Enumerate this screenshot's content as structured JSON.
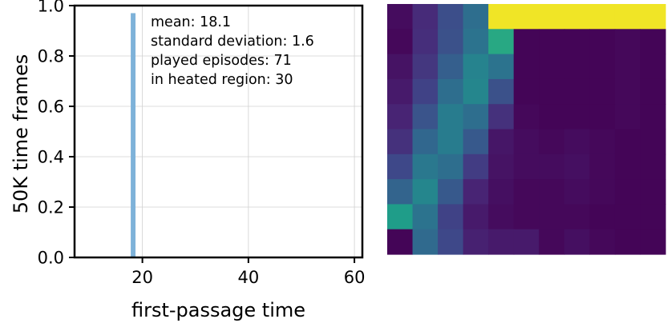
{
  "chart_data": [
    {
      "type": "bar",
      "xlabel": "first-passage time",
      "ylabel": "50K time frames",
      "xlim": [
        7.2,
        61.5
      ],
      "ylim": [
        0,
        1.0
      ],
      "xticks": [
        20,
        40,
        60
      ],
      "yticks": [
        0.0,
        0.2,
        0.4,
        0.6,
        0.8,
        1.0
      ],
      "xtick_labels": [
        "20",
        "40",
        "60"
      ],
      "ytick_labels": [
        "0.0",
        "0.2",
        "0.4",
        "0.6",
        "0.8",
        "1.0"
      ],
      "grid": true,
      "bar_color": "#7eb2d9",
      "bars": [
        {
          "x_start": 17.8,
          "x_end": 18.7,
          "value": 0.97
        }
      ],
      "annotation_lines": [
        "mean: 18.1",
        "standard deviation: 1.6",
        "played episodes: 71",
        "in heated region: 30"
      ]
    },
    {
      "type": "heatmap",
      "colormap": "viridis",
      "vmin": 0,
      "vmax": 1,
      "rows": 10,
      "cols": 11,
      "values": [
        [
          0.03,
          0.12,
          0.24,
          0.36,
          0.98,
          0.98,
          0.98,
          0.98,
          0.98,
          0.98,
          0.98
        ],
        [
          0.02,
          0.13,
          0.25,
          0.38,
          0.6,
          0.01,
          0.01,
          0.01,
          0.01,
          0.02,
          0.01
        ],
        [
          0.05,
          0.16,
          0.3,
          0.45,
          0.38,
          0.01,
          0.01,
          0.01,
          0.01,
          0.02,
          0.01
        ],
        [
          0.07,
          0.2,
          0.36,
          0.46,
          0.25,
          0.01,
          0.01,
          0.01,
          0.01,
          0.02,
          0.01
        ],
        [
          0.1,
          0.26,
          0.42,
          0.36,
          0.14,
          0.02,
          0.01,
          0.01,
          0.01,
          0.02,
          0.01
        ],
        [
          0.14,
          0.33,
          0.42,
          0.28,
          0.06,
          0.03,
          0.02,
          0.03,
          0.02,
          0.01,
          0.01
        ],
        [
          0.22,
          0.4,
          0.36,
          0.18,
          0.05,
          0.03,
          0.03,
          0.04,
          0.02,
          0.01,
          0.01
        ],
        [
          0.32,
          0.46,
          0.28,
          0.1,
          0.04,
          0.02,
          0.02,
          0.03,
          0.02,
          0.01,
          0.01
        ],
        [
          0.55,
          0.38,
          0.2,
          0.07,
          0.03,
          0.02,
          0.02,
          0.02,
          0.01,
          0.01,
          0.01
        ],
        [
          0.01,
          0.34,
          0.22,
          0.09,
          0.07,
          0.07,
          0.02,
          0.04,
          0.02,
          0.01,
          0.01
        ]
      ]
    }
  ]
}
